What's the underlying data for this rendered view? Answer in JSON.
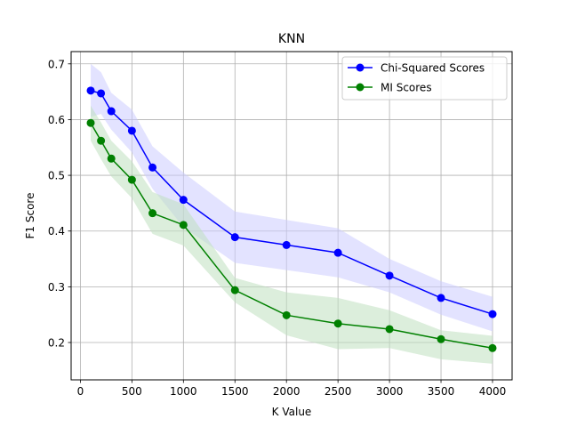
{
  "chart_data": {
    "type": "line",
    "title": "KNN",
    "xlabel": "K Value",
    "ylabel": "F1 Score",
    "xlim": [
      -90,
      4190
    ],
    "ylim": [
      0.133,
      0.722
    ],
    "grid": true,
    "legend_position": "top-right",
    "xticks": [
      0,
      500,
      1000,
      1500,
      2000,
      2500,
      3000,
      3500,
      4000
    ],
    "yticks": [
      0.2,
      0.3,
      0.4,
      0.5,
      0.6,
      0.7
    ],
    "xtick_labels": [
      "0",
      "500",
      "1000",
      "1500",
      "2000",
      "2500",
      "3000",
      "3500",
      "4000"
    ],
    "ytick_labels": [
      "0.2",
      "0.3",
      "0.4",
      "0.5",
      "0.6",
      "0.7"
    ],
    "x": [
      100,
      200,
      300,
      500,
      700,
      1000,
      1500,
      2000,
      2500,
      3000,
      3500,
      4000
    ],
    "series": [
      {
        "name": "Chi-Squared Scores",
        "color": "#0000ff",
        "band_color": "#ccccff",
        "values": [
          0.652,
          0.647,
          0.615,
          0.58,
          0.514,
          0.456,
          0.389,
          0.375,
          0.361,
          0.32,
          0.28,
          0.251
        ],
        "upper": [
          0.7,
          0.685,
          0.648,
          0.618,
          0.552,
          0.505,
          0.435,
          0.42,
          0.405,
          0.35,
          0.31,
          0.282
        ],
        "lower": [
          0.605,
          0.61,
          0.582,
          0.541,
          0.476,
          0.407,
          0.343,
          0.33,
          0.317,
          0.29,
          0.25,
          0.22
        ]
      },
      {
        "name": "MI Scores",
        "color": "#008000",
        "band_color": "#bfe0bf",
        "values": [
          0.594,
          0.562,
          0.53,
          0.492,
          0.432,
          0.411,
          0.294,
          0.249,
          0.234,
          0.224,
          0.206,
          0.19
        ],
        "upper": [
          0.625,
          0.595,
          0.562,
          0.525,
          0.47,
          0.448,
          0.316,
          0.29,
          0.28,
          0.258,
          0.222,
          0.212
        ],
        "lower": [
          0.562,
          0.529,
          0.498,
          0.459,
          0.395,
          0.374,
          0.272,
          0.213,
          0.188,
          0.19,
          0.17,
          0.162
        ]
      }
    ]
  }
}
